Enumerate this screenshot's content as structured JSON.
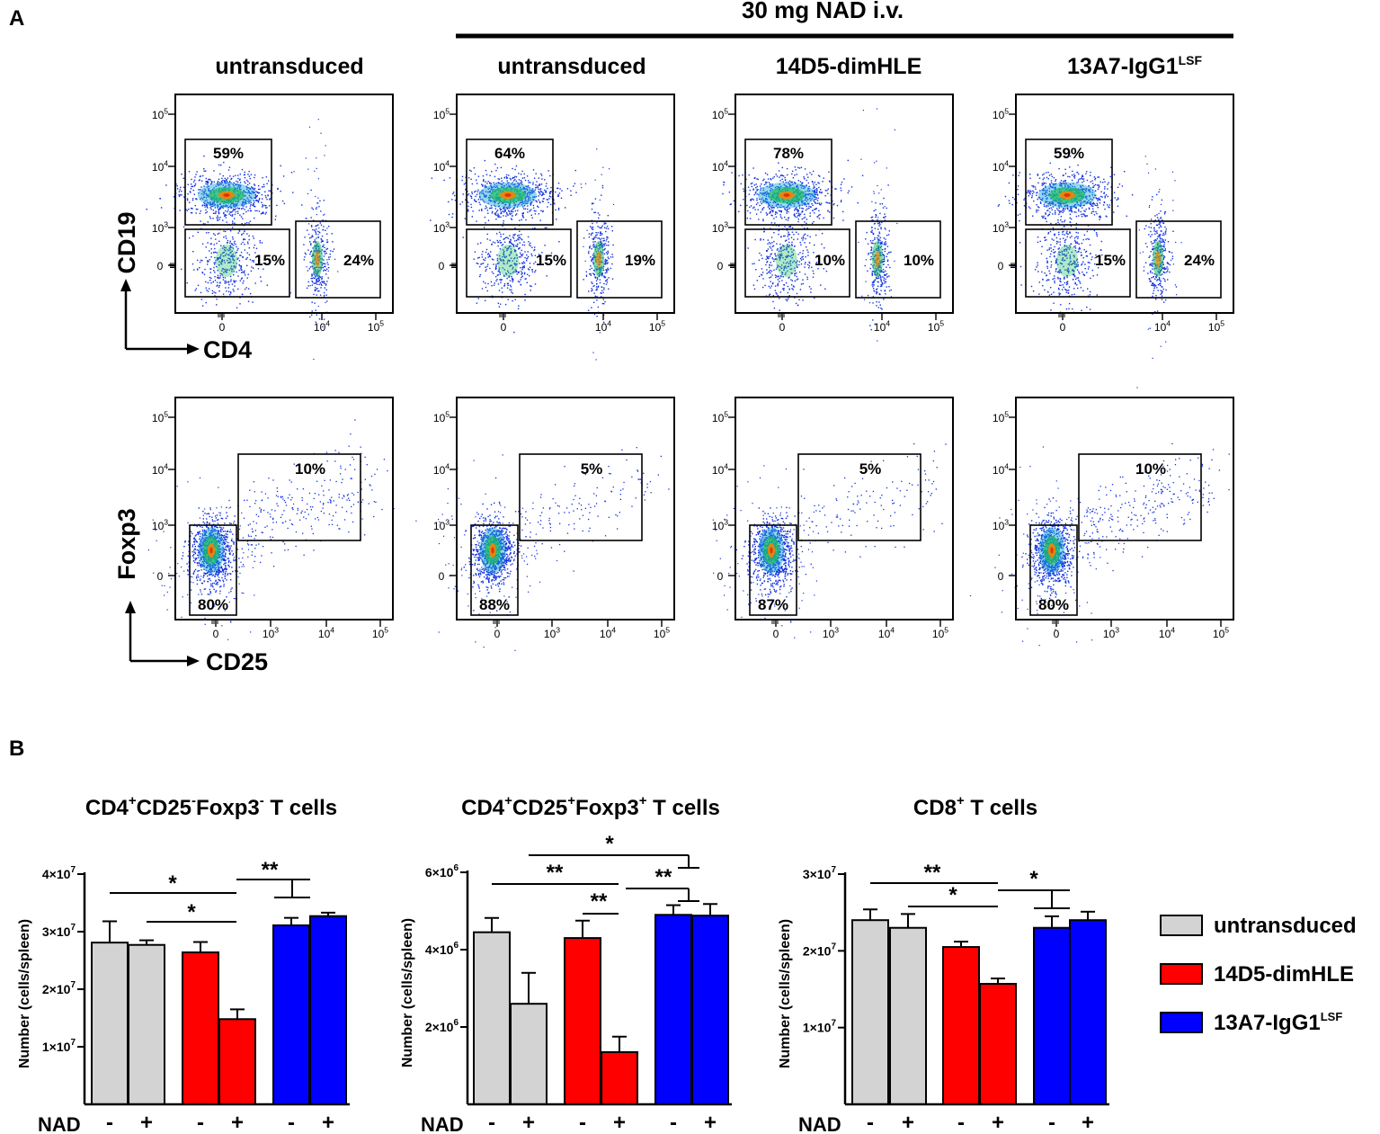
{
  "panel_labels": {
    "a": "A",
    "b": "B"
  },
  "treatment_label": "30 mg NAD i.v.",
  "column_titles": [
    {
      "main": "untransduced",
      "sup": ""
    },
    {
      "main": "untransduced",
      "sup": ""
    },
    {
      "main": "14D5-dimHLE",
      "sup": ""
    },
    {
      "main": "13A7-IgG1",
      "sup": "LSF"
    }
  ],
  "flow_axes": {
    "row1": {
      "y": "CD19",
      "x": "CD4"
    },
    "row2": {
      "y": "Foxp3",
      "x": "CD25"
    },
    "y_ticks": [
      {
        "base": "10",
        "exp": "5"
      },
      {
        "base": "10",
        "exp": "4"
      },
      {
        "base": "10",
        "exp": "3"
      },
      {
        "base": "0",
        "exp": ""
      }
    ],
    "x_ticks_row1": [
      {
        "base": "0",
        "exp": ""
      },
      {
        "base": "10",
        "exp": "4"
      },
      {
        "base": "10",
        "exp": "5"
      }
    ],
    "x_ticks_row2": [
      {
        "base": "0",
        "exp": ""
      },
      {
        "base": "10",
        "exp": "3"
      },
      {
        "base": "10",
        "exp": "4"
      },
      {
        "base": "10",
        "exp": "5"
      }
    ]
  },
  "flow_gates": {
    "row1": [
      [
        "59%",
        "15%",
        "24%"
      ],
      [
        "64%",
        "15%",
        "19%"
      ],
      [
        "78%",
        "10%",
        "10%"
      ],
      [
        "59%",
        "15%",
        "24%"
      ]
    ],
    "row2": [
      [
        "10%",
        "80%"
      ],
      [
        "5%",
        "88%"
      ],
      [
        "5%",
        "87%"
      ],
      [
        "10%",
        "80%"
      ]
    ]
  },
  "colors": {
    "untransduced": "#d3d3d3",
    "dimhle": "#ff0000",
    "igg1": "#0000ff",
    "dot": "#1030e0",
    "dense": "#20c060",
    "core": "#ff8000"
  },
  "chart_data": [
    {
      "type": "bar",
      "title": {
        "parts": [
          "CD4",
          "+",
          "CD25",
          "-",
          "Foxp3",
          "-",
          " T cells"
        ]
      },
      "ylabel": "Number (cells/spleen)",
      "ylim": [
        0,
        40000000
      ],
      "yticks": [
        {
          "value": 10000000,
          "label": "1×10",
          "exp": "7"
        },
        {
          "value": 20000000,
          "label": "2×10",
          "exp": "7"
        },
        {
          "value": 30000000,
          "label": "3×10",
          "exp": "7"
        },
        {
          "value": 40000000,
          "label": "4×10",
          "exp": "7"
        }
      ],
      "categories": [
        "-",
        "+",
        "-",
        "+",
        "-",
        "+"
      ],
      "groups": [
        "untransduced",
        "untransduced",
        "14D5-dimHLE",
        "14D5-dimHLE",
        "13A7-IgG1LSF",
        "13A7-IgG1LSF"
      ],
      "values": [
        28100000,
        27700000,
        26400000,
        14800000,
        31100000,
        32700000
      ],
      "errors": [
        3700000,
        800000,
        1800000,
        1700000,
        1300000,
        600000
      ],
      "significance": [
        "*",
        "*",
        "**"
      ]
    },
    {
      "type": "bar",
      "title": {
        "parts": [
          "CD4",
          "+",
          "CD25",
          "+",
          "Foxp3",
          "+",
          " T cells"
        ]
      },
      "ylabel": "Number (cells/spleen)",
      "ylim": [
        0,
        6000000
      ],
      "yticks": [
        {
          "value": 2000000,
          "label": "2×10",
          "exp": "6"
        },
        {
          "value": 4000000,
          "label": "4×10",
          "exp": "6"
        },
        {
          "value": 6000000,
          "label": "6×10",
          "exp": "6"
        }
      ],
      "categories": [
        "-",
        "+",
        "-",
        "+",
        "-",
        "+"
      ],
      "groups": [
        "untransduced",
        "untransduced",
        "14D5-dimHLE",
        "14D5-dimHLE",
        "13A7-IgG1LSF",
        "13A7-IgG1LSF"
      ],
      "values": [
        4450000,
        2600000,
        4300000,
        1350000,
        4900000,
        4880000
      ],
      "errors": [
        370000,
        800000,
        450000,
        400000,
        250000,
        300000
      ],
      "significance": [
        "*",
        "**",
        "**",
        "**"
      ]
    },
    {
      "type": "bar",
      "title": {
        "parts": [
          "CD8",
          "+",
          " T cells"
        ]
      },
      "ylabel": "Number (cells/spleen)",
      "ylim": [
        0,
        30000000
      ],
      "yticks": [
        {
          "value": 10000000,
          "label": "1×10",
          "exp": "7"
        },
        {
          "value": 20000000,
          "label": "2×10",
          "exp": "7"
        },
        {
          "value": 30000000,
          "label": "3×10",
          "exp": "7"
        }
      ],
      "categories": [
        "-",
        "+",
        "-",
        "+",
        "-",
        "+"
      ],
      "groups": [
        "untransduced",
        "untransduced",
        "14D5-dimHLE",
        "14D5-dimHLE",
        "13A7-IgG1LSF",
        "13A7-IgG1LSF"
      ],
      "values": [
        24000000,
        23000000,
        20500000,
        15700000,
        23000000,
        24000000
      ],
      "errors": [
        1400000,
        1800000,
        700000,
        700000,
        1500000,
        1100000
      ],
      "significance": [
        "**",
        "*",
        "*"
      ]
    }
  ],
  "nad_label": "NAD",
  "legend": [
    {
      "label": "untransduced",
      "sup": ""
    },
    {
      "label": "14D5-dimHLE",
      "sup": ""
    },
    {
      "label": "13A7-IgG1",
      "sup": "LSF"
    }
  ]
}
